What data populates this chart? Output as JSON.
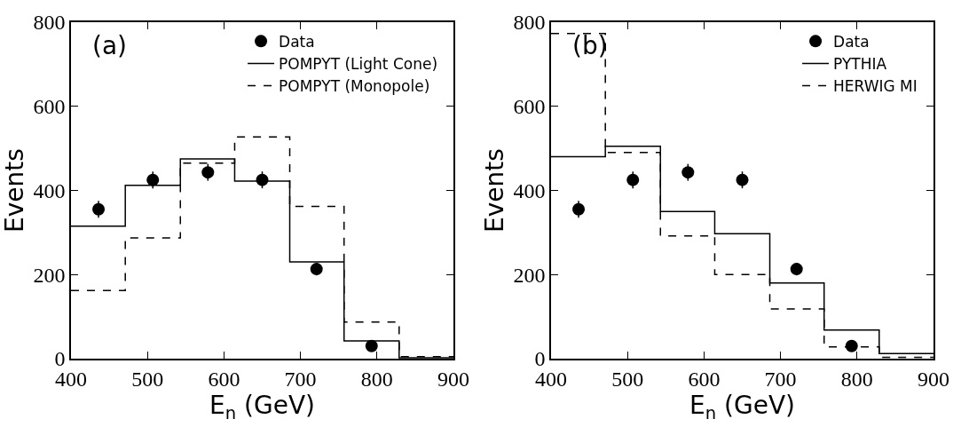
{
  "chart_data": [
    {
      "type": "step",
      "xlabel": "E$_{n}$ (GeV)",
      "ylabel": "Events",
      "annotations": [
        "(a)"
      ],
      "xlim": [
        400,
        900
      ],
      "ylim": [
        0,
        800
      ],
      "xticks": [
        400,
        500,
        600,
        700,
        800,
        900
      ],
      "yticks": [
        0,
        200,
        400,
        600,
        800
      ],
      "grid": false,
      "legend": "top right",
      "series": [
        {
          "name": "Data",
          "type": "scatter",
          "marker": "circle",
          "color": "#000000",
          "x": [
            436,
            507,
            579,
            650,
            721,
            793
          ],
          "values": [
            355,
            425,
            443,
            425,
            213,
            30
          ],
          "errors": [
            20,
            20,
            20,
            20,
            15,
            8
          ]
        },
        {
          "name": "POMPYT (Light Cone)",
          "line_style": "solid",
          "color": "#000000",
          "x": [
            400,
            471,
            543,
            614,
            686,
            757,
            829,
            900
          ],
          "values": [
            315,
            412,
            475,
            422,
            230,
            42,
            2,
            2
          ]
        },
        {
          "name": "POMPYT (Monopole)",
          "line_style": "dashed",
          "color": "#000000",
          "x": [
            400,
            471,
            543,
            614,
            686,
            757,
            829,
            900
          ],
          "values": [
            162,
            287,
            465,
            527,
            362,
            87,
            5,
            5
          ]
        }
      ]
    },
    {
      "type": "step",
      "xlabel": "E$_{n}$ (GeV)",
      "ylabel": "Events",
      "annotations": [
        "(b)"
      ],
      "xlim": [
        400,
        900
      ],
      "ylim": [
        0,
        800
      ],
      "xticks": [
        400,
        500,
        600,
        700,
        800,
        900
      ],
      "yticks": [
        0,
        200,
        400,
        600,
        800
      ],
      "grid": false,
      "legend": "top right",
      "series": [
        {
          "name": "Data",
          "type": "scatter",
          "marker": "circle",
          "color": "#000000",
          "x": [
            436,
            507,
            579,
            650,
            721,
            793
          ],
          "values": [
            355,
            425,
            443,
            425,
            213,
            30
          ],
          "errors": [
            20,
            20,
            20,
            20,
            15,
            8
          ]
        },
        {
          "name": "PYTHIA",
          "line_style": "solid",
          "color": "#000000",
          "x": [
            400,
            471,
            543,
            614,
            686,
            757,
            829,
            900
          ],
          "values": [
            480,
            505,
            350,
            297,
            180,
            68,
            12,
            12
          ]
        },
        {
          "name": "HERWIG MI",
          "line_style": "dashed",
          "color": "#000000",
          "x": [
            400,
            471,
            543,
            614,
            686,
            757,
            829,
            900
          ],
          "values": [
            773,
            490,
            292,
            200,
            118,
            28,
            3,
            3
          ]
        }
      ]
    }
  ]
}
